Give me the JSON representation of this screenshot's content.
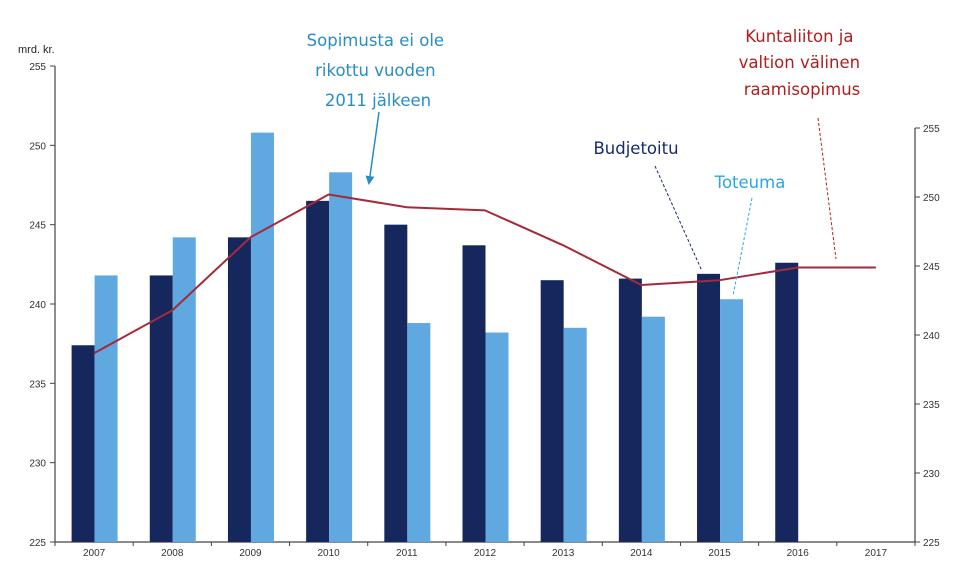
{
  "chart_data": {
    "type": "bar",
    "categories": [
      "2007",
      "2008",
      "2009",
      "2010",
      "2011",
      "2012",
      "2013",
      "2014",
      "2015",
      "2016",
      "2017"
    ],
    "ylabel": "mrd. kr.",
    "ylim": [
      225,
      255
    ],
    "yticks": [
      225,
      230,
      235,
      240,
      245,
      250,
      255
    ],
    "y2ticks": [
      225,
      230,
      235,
      240,
      245,
      250,
      255
    ],
    "grid": false,
    "series": [
      {
        "name": "Budjetoitu",
        "kind": "bar",
        "color": "#16275e",
        "values": [
          237.4,
          241.8,
          244.2,
          246.5,
          245.0,
          243.7,
          241.5,
          241.6,
          241.9,
          242.6,
          null
        ]
      },
      {
        "name": "Toteuma",
        "kind": "bar",
        "color": "#5fa8e0",
        "values": [
          241.8,
          244.2,
          250.8,
          248.3,
          238.8,
          238.2,
          238.5,
          239.2,
          240.3,
          null,
          null
        ]
      },
      {
        "name": "Kuntaliiton ja valtion välinen raamisopimus",
        "kind": "line",
        "color": "#a52a3a",
        "values": [
          236.9,
          239.6,
          244.2,
          246.9,
          246.1,
          245.9,
          243.7,
          241.2,
          241.5,
          242.3,
          242.3
        ]
      }
    ],
    "annotations": [
      {
        "lines": [
          "Sopimusta ei ole",
          "rikottu vuoden",
          "2011 jälkeen"
        ],
        "color": "#2a8cc4"
      },
      {
        "lines": [
          "Kuntaliiton ja",
          "valtion välinen",
          "raamisopimus"
        ],
        "color": "#b01e1e"
      },
      {
        "lines": [
          "Budjetoitu"
        ],
        "color": "#1a2b6b"
      },
      {
        "lines": [
          "Toteuma"
        ],
        "color": "#2aa7de"
      }
    ]
  }
}
